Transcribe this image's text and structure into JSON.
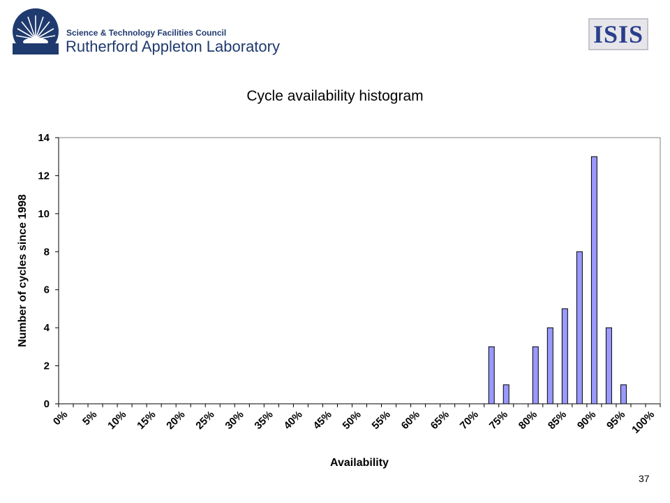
{
  "header": {
    "org_line1": "Science & Technology Facilities Council",
    "org_line2": "Rutherford Appleton Laboratory",
    "isis_logo_text": "ISIS"
  },
  "page_number": "37",
  "colors": {
    "bar_fill": "#9999FF",
    "bar_stroke": "#000000",
    "logo_blue": "#1f3a6e"
  },
  "chart_data": {
    "type": "bar",
    "title": "Cycle availability histogram",
    "xlabel": "Availability",
    "ylabel": "Number of cycles since 1998",
    "ylim": [
      0,
      14
    ],
    "yticks": [
      0,
      2,
      4,
      6,
      8,
      10,
      12,
      14
    ],
    "grid": false,
    "legend": "none",
    "x_tick_labels": [
      "0%",
      "5%",
      "10%",
      "15%",
      "20%",
      "25%",
      "30%",
      "35%",
      "40%",
      "45%",
      "50%",
      "55%",
      "60%",
      "65%",
      "70%",
      "75%",
      "80%",
      "85%",
      "90%",
      "95%",
      "100%"
    ],
    "categories": [
      "0%",
      "2.5%",
      "5%",
      "7.5%",
      "10%",
      "12.5%",
      "15%",
      "17.5%",
      "20%",
      "22.5%",
      "25%",
      "27.5%",
      "30%",
      "32.5%",
      "35%",
      "37.5%",
      "40%",
      "42.5%",
      "45%",
      "47.5%",
      "50%",
      "52.5%",
      "55%",
      "57.5%",
      "60%",
      "62.5%",
      "65%",
      "67.5%",
      "70%",
      "72.5%",
      "75%",
      "77.5%",
      "80%",
      "82.5%",
      "85%",
      "87.5%",
      "90%",
      "92.5%",
      "95%",
      "97.5%",
      "100%"
    ],
    "values": [
      0,
      0,
      0,
      0,
      0,
      0,
      0,
      0,
      0,
      0,
      0,
      0,
      0,
      0,
      0,
      0,
      0,
      0,
      0,
      0,
      0,
      0,
      0,
      0,
      0,
      0,
      0,
      0,
      0,
      3,
      1,
      0,
      3,
      4,
      5,
      8,
      13,
      4,
      1,
      0,
      0
    ]
  }
}
